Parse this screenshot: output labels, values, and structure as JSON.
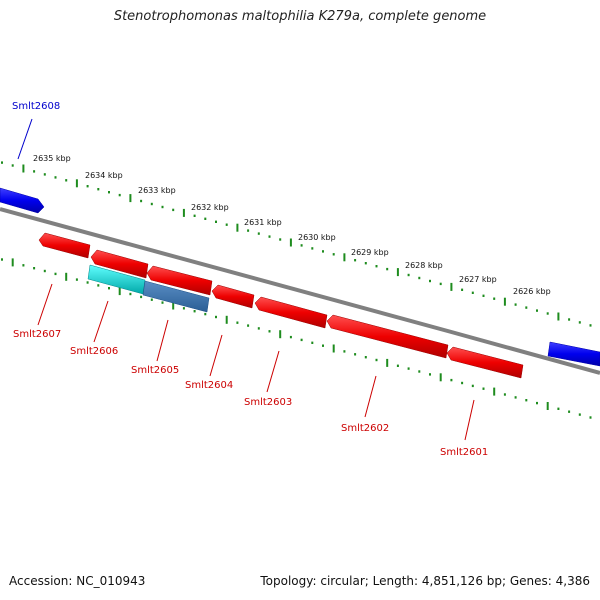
{
  "title": "Stenotrophomonas maltophilia K279a, complete genome",
  "footer": {
    "accession": "Accession: NC_010943",
    "summary": "Topology: circular; Length: 4,851,126 bp; Genes: 4,386"
  },
  "scale_labels": [
    "2635 kbp",
    "2634 kbp",
    "2633 kbp",
    "2632 kbp",
    "2631 kbp",
    "2630 kbp",
    "2629 kbp",
    "2628 kbp",
    "2627 kbp",
    "2626 kbp"
  ],
  "genes": [
    {
      "label": "Smlt2608",
      "strand": "forward",
      "color": "#0000cc"
    },
    {
      "label": "Smlt2607",
      "strand": "reverse",
      "color": "#cc0000"
    },
    {
      "label": "Smlt2606",
      "strand": "reverse",
      "color": "#cc0000"
    },
    {
      "label": "Smlt2605",
      "strand": "reverse",
      "color": "#cc0000"
    },
    {
      "label": "Smlt2604",
      "strand": "reverse",
      "color": "#cc0000"
    },
    {
      "label": "Smlt2603",
      "strand": "reverse",
      "color": "#cc0000"
    },
    {
      "label": "Smlt2602",
      "strand": "reverse",
      "color": "#cc0000"
    },
    {
      "label": "Smlt2601",
      "strand": "reverse",
      "color": "#cc0000"
    },
    {
      "label": "",
      "strand": "forward",
      "color": "#0000cc"
    }
  ],
  "colors": {
    "backbone": "#808080",
    "forward_gene": "#0000ee",
    "reverse_gene": "#ee0000",
    "feature_cyan": "#00c8c8",
    "feature_steel": "#3a6ea5",
    "scale": "#1e8c1e"
  }
}
